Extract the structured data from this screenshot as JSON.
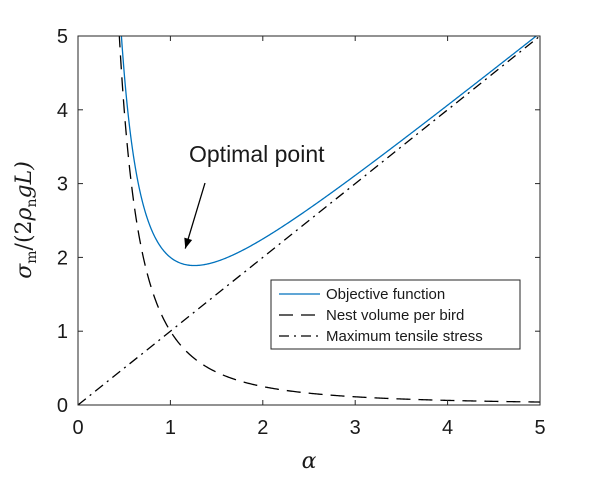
{
  "chart_data": {
    "type": "line",
    "title": "",
    "xlabel": "α",
    "ylabel": "σm/(2ρngL)",
    "ylabel_parts": {
      "sigma": "σ",
      "sigma_sub": "m",
      "mid": "/(2",
      "rho": "ρ",
      "rho_sub": "n",
      "tail": "gL)"
    },
    "xlim": [
      0,
      5
    ],
    "ylim": [
      0,
      5
    ],
    "xticks": [
      0,
      1,
      2,
      3,
      4,
      5
    ],
    "yticks": [
      0,
      1,
      2,
      3,
      4,
      5
    ],
    "xtick_labels": [
      "0",
      "1",
      "2",
      "3",
      "4",
      "5"
    ],
    "ytick_labels": [
      "0",
      "1",
      "2",
      "3",
      "4",
      "5"
    ],
    "grid": false,
    "legend_position": "lower-right",
    "series": [
      {
        "name": "Objective function",
        "color": "#0072BD",
        "style": "solid",
        "formula": "1/α^2 + α",
        "x": [
          0.4,
          0.45,
          0.5,
          0.6,
          0.7,
          0.8,
          0.9,
          1.0,
          1.1,
          1.2,
          1.3,
          1.5,
          1.75,
          2.0,
          2.5,
          3.0,
          3.5,
          4.0,
          4.5,
          5.0
        ],
        "y": [
          6.65,
          5.39,
          4.5,
          3.38,
          2.74,
          2.36,
          2.13,
          2.0,
          1.93,
          1.89,
          1.89,
          1.94,
          2.08,
          2.25,
          2.66,
          3.11,
          3.58,
          4.06,
          4.55,
          5.04
        ]
      },
      {
        "name": "Nest volume per bird",
        "color": "#000000",
        "style": "dashed",
        "formula": "1/α^2",
        "x": [
          0.4,
          0.45,
          0.5,
          0.6,
          0.7,
          0.8,
          0.9,
          1.0,
          1.25,
          1.5,
          2.0,
          2.5,
          3.0,
          3.5,
          4.0,
          4.5,
          5.0
        ],
        "y": [
          6.25,
          4.94,
          4.0,
          2.78,
          2.04,
          1.56,
          1.23,
          1.0,
          0.64,
          0.44,
          0.25,
          0.16,
          0.11,
          0.08,
          0.06,
          0.05,
          0.04
        ]
      },
      {
        "name": "Maximum tensile stress",
        "color": "#000000",
        "style": "dashdot",
        "formula": "α",
        "x": [
          0,
          5
        ],
        "y": [
          0,
          5
        ]
      }
    ],
    "annotations": [
      {
        "text": "Optimal point",
        "arrow_to": [
          1.15,
          1.93
        ]
      }
    ]
  }
}
